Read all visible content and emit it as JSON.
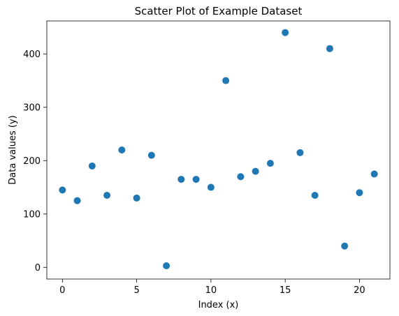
{
  "chart_data": {
    "type": "scatter",
    "title": "Scatter Plot of Example Dataset",
    "xlabel": "Index (x)",
    "ylabel": "Data values (y)",
    "xlim": [
      -1.05,
      22.05
    ],
    "ylim": [
      -21.85,
      461.85
    ],
    "xticks": [
      0,
      5,
      10,
      15,
      20
    ],
    "yticks": [
      0,
      100,
      200,
      300,
      400
    ],
    "grid": false,
    "marker_color": "#1f77b4",
    "points": [
      {
        "x": 0,
        "y": 145
      },
      {
        "x": 1,
        "y": 125
      },
      {
        "x": 2,
        "y": 190
      },
      {
        "x": 3,
        "y": 135
      },
      {
        "x": 4,
        "y": 220
      },
      {
        "x": 5,
        "y": 130
      },
      {
        "x": 6,
        "y": 210
      },
      {
        "x": 7,
        "y": 3
      },
      {
        "x": 8,
        "y": 165
      },
      {
        "x": 9,
        "y": 165
      },
      {
        "x": 10,
        "y": 150
      },
      {
        "x": 11,
        "y": 350
      },
      {
        "x": 12,
        "y": 170
      },
      {
        "x": 13,
        "y": 180
      },
      {
        "x": 14,
        "y": 195
      },
      {
        "x": 15,
        "y": 440
      },
      {
        "x": 16,
        "y": 215
      },
      {
        "x": 17,
        "y": 135
      },
      {
        "x": 18,
        "y": 410
      },
      {
        "x": 19,
        "y": 40
      },
      {
        "x": 20,
        "y": 140
      },
      {
        "x": 21,
        "y": 175
      }
    ]
  }
}
